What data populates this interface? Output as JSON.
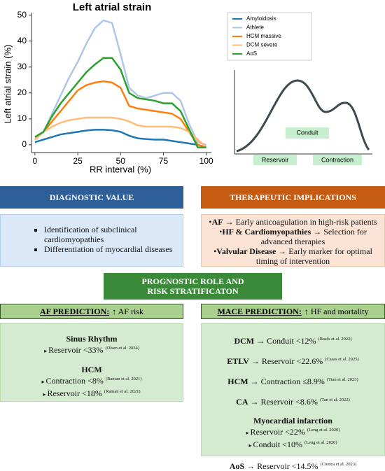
{
  "chart_data": {
    "type": "line",
    "title": "Left atrial strain",
    "x_label": "RR interval (%)",
    "y_label": "Left atrial strain (%)",
    "x": [
      0,
      5,
      10,
      15,
      20,
      25,
      30,
      35,
      40,
      45,
      50,
      55,
      60,
      65,
      70,
      75,
      80,
      85,
      90,
      95,
      100
    ],
    "series": [
      {
        "name": "Amyloidosis",
        "color": "#1f77b4",
        "values": [
          1,
          2,
          3,
          4,
          4.5,
          5,
          5.5,
          5.8,
          5.8,
          5.6,
          5,
          3.5,
          2.5,
          2.2,
          2,
          2,
          1.5,
          1,
          0.5,
          0,
          -1
        ]
      },
      {
        "name": "Athlete",
        "color": "#aec7e8",
        "values": [
          2,
          5,
          12,
          19,
          26,
          32,
          39,
          45,
          48,
          47,
          35,
          22,
          19,
          18,
          19,
          20,
          20,
          17,
          8,
          1,
          0
        ]
      },
      {
        "name": "HCM massive",
        "color": "#ff7f0e",
        "values": [
          2,
          5,
          9,
          13,
          17,
          21,
          23,
          24,
          24.5,
          24,
          22,
          15,
          14,
          13.5,
          13,
          12.5,
          12,
          10,
          5,
          0,
          -1
        ]
      },
      {
        "name": "DCM severe",
        "color": "#ffbb78",
        "values": [
          2,
          5,
          7,
          8.5,
          9.5,
          10,
          10.5,
          10.5,
          10.5,
          10.5,
          10,
          9,
          7.5,
          7,
          7,
          7,
          7,
          6.5,
          5,
          2,
          -1
        ]
      },
      {
        "name": "AoS",
        "color": "#2ca02c",
        "values": [
          3,
          5,
          11,
          16,
          20,
          24,
          28,
          31,
          33.5,
          33.5,
          29,
          20,
          18,
          17.5,
          17,
          16,
          16,
          13,
          6,
          -1,
          -1
        ]
      }
    ],
    "xlim": [
      -2,
      103
    ],
    "ylim": [
      -3,
      51
    ],
    "xticks": [
      0,
      25,
      50,
      75,
      100
    ],
    "yticks": [
      0,
      10,
      20,
      30,
      40,
      50
    ],
    "legend": "upper right"
  },
  "schematic": {
    "labels": [
      "Conduit",
      "Reservoir",
      "Contraction"
    ]
  },
  "diagnostic": {
    "title": "DIAGNOSTIC VALUE",
    "items": [
      "Identification of subclinical cardiomyopathies",
      "Differentiation of myocardial diseases"
    ]
  },
  "therapeutic": {
    "title": "THERAPEUTIC IMPLICATIONS",
    "items": [
      {
        "bold": "AF",
        "text": "→ Early anticoagulation in high-risk patients"
      },
      {
        "bold": "HF & Cardiomyopathies",
        "text": "→ Selection for advanced therapies"
      },
      {
        "bold": "Valvular Disease",
        "text": "→ Early marker for optimal timing of intervention"
      }
    ]
  },
  "prognostic": {
    "title": "PROGNOSTIC ROLE AND RISK STRATIFICATON"
  },
  "af_prediction": {
    "title": "AF PREDICTION:",
    "subtitle": "↑ AF risk",
    "groups": [
      {
        "name": "Sinus Rhythm",
        "items": [
          {
            "text": "Reservoir <33%",
            "cite": "(Olsen et al. 2024)"
          }
        ]
      },
      {
        "name": "HCM",
        "items": [
          {
            "text": "Contraction <8%",
            "cite": "(Raman et al. 2021)"
          },
          {
            "text": "Reservoir <18%",
            "cite": "(Raman et al. 2021)"
          }
        ]
      }
    ]
  },
  "mace_prediction": {
    "title": "MACE PREDICTION:",
    "subtitle": "↑ HF and mortality",
    "groups": [
      {
        "name": "DCM",
        "text": "→ Conduit <12%",
        "cite": "(Raafs et al. 2022)"
      },
      {
        "name": "ETLV",
        "text": "→ Reservoir <22.6%",
        "cite": "(Casas et al. 2025)"
      },
      {
        "name": "HCM",
        "text": "→ Contraction  ≤8.9%",
        "cite": "(Tian et al. 2023)"
      },
      {
        "name": "CA",
        "text": "→ Reservoir <8.6%",
        "cite": "(Tan et al. 2022)"
      },
      {
        "name": "Myocardial infarction",
        "items": [
          {
            "text": "Reservoir <22%",
            "cite": "(Leng et al. 2020)"
          },
          {
            "text": "Conduit <10%",
            "cite": "(Leng et al. 2020)"
          }
        ]
      },
      {
        "name": "AoS",
        "text": "→ Reservoir <14.5%",
        "cite": "(Cionca et al. 2023)"
      }
    ]
  }
}
